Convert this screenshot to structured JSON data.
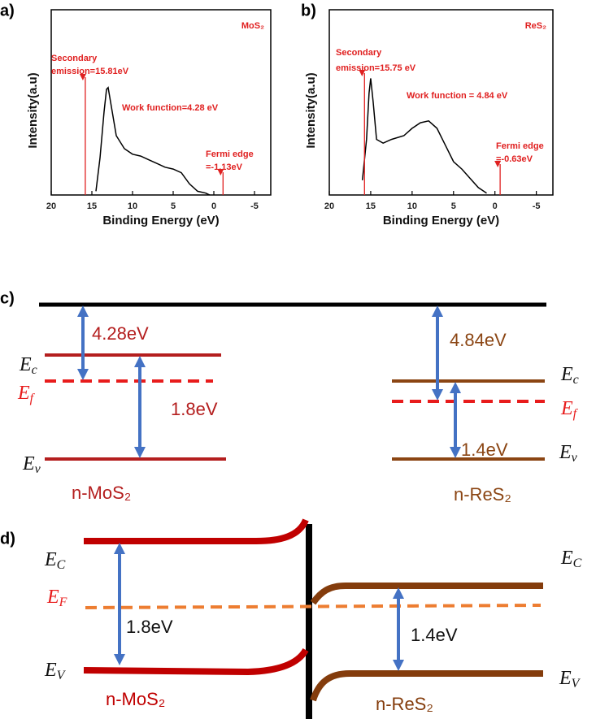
{
  "chart_data": [
    {
      "type": "line",
      "panel": "a)",
      "title": "MoS₂",
      "xlabel": "Binding Energy (eV)",
      "ylabel": "Intensity(a.u)",
      "xlim": [
        20,
        -7
      ],
      "xticks": [
        20,
        15,
        10,
        5,
        0,
        -5
      ],
      "ylim": [
        0,
        100
      ],
      "color": "#000000",
      "x": [
        14.5,
        14,
        13.5,
        13.2,
        13,
        12.5,
        12,
        11,
        10,
        9,
        8,
        7,
        6,
        5,
        4,
        3,
        2,
        1,
        0.5
      ],
      "values": [
        2,
        20,
        45,
        57,
        58,
        45,
        32,
        25,
        22,
        21,
        19,
        17,
        15,
        14,
        12,
        6,
        2,
        1,
        0
      ],
      "annotations": [
        {
          "lines": [
            "Secondary",
            "emission=15.81eV"
          ],
          "x": 15.81
        },
        {
          "lines": [
            "Work function=4.28 eV"
          ]
        },
        {
          "lines": [
            "Fermi edge",
            "=-1.13eV"
          ],
          "x": -1.13
        }
      ]
    },
    {
      "type": "line",
      "panel": "b)",
      "title": "ReS₂",
      "xlabel": "Binding Energy (eV)",
      "ylabel": "Intensity(a.u)",
      "xlim": [
        20,
        -7
      ],
      "xticks": [
        20,
        15,
        10,
        5,
        0,
        -5
      ],
      "ylim": [
        0,
        100
      ],
      "color": "#000000",
      "x": [
        16,
        15.5,
        15.2,
        15,
        14.7,
        14.3,
        13.5,
        12.5,
        11,
        10,
        9,
        8,
        7,
        6,
        5,
        4,
        3,
        2,
        1
      ],
      "values": [
        8,
        30,
        55,
        63,
        50,
        30,
        28,
        30,
        32,
        36,
        39,
        40,
        36,
        27,
        18,
        14,
        9,
        4,
        1
      ],
      "annotations": [
        {
          "lines": [
            "Secondary",
            "emission=15.75 eV"
          ],
          "x": 15.75
        },
        {
          "lines": [
            "Work function = 4.84 eV"
          ]
        },
        {
          "lines": [
            "Fermi edge",
            "=-0.63eV"
          ],
          "x": -0.63
        }
      ]
    }
  ],
  "diagram_c": {
    "label": "c)",
    "left": {
      "work_function": "4.28eV",
      "ec": {
        "symbol": "E",
        "subscript": "c"
      },
      "ef": {
        "symbol": "E",
        "subscript": "f"
      },
      "gap": "1.8eV",
      "ev": {
        "symbol": "E",
        "subscript": "v"
      },
      "name": "n-MoS₂"
    },
    "right": {
      "work_function": "4.84eV",
      "ec": {
        "symbol": "E",
        "subscript": "c"
      },
      "ef": {
        "symbol": "E",
        "subscript": "f"
      },
      "gap": "1.4eV",
      "ev": {
        "symbol": "E",
        "subscript": "v"
      },
      "name": "n-ReS₂"
    }
  },
  "diagram_d": {
    "label": "d)",
    "left": {
      "ec": {
        "symbol": "E",
        "subscript": "C"
      },
      "ef": {
        "symbol": "E",
        "subscript": "F"
      },
      "gap": "1.8eV",
      "ev": {
        "symbol": "E",
        "subscript": "V"
      },
      "name": "n-MoS₂"
    },
    "right": {
      "ec": {
        "symbol": "E",
        "subscript": "C"
      },
      "gap": "1.4eV",
      "ev": {
        "symbol": "E",
        "subscript": "V"
      },
      "name": "n-ReS₂"
    }
  }
}
